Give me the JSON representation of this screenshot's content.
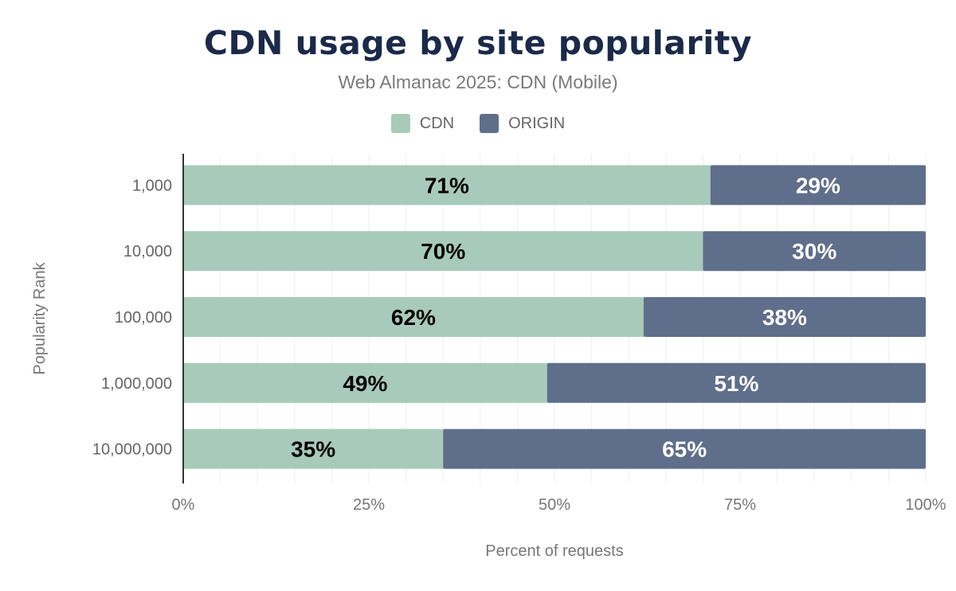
{
  "chart_data": {
    "type": "bar",
    "orientation": "horizontal",
    "stacked": true,
    "title": "CDN usage by site popularity",
    "subtitle": "Web Almanac 2025: CDN  (Mobile)",
    "xlabel": "Percent of requests",
    "ylabel": "Popularity Rank",
    "xlim": [
      0,
      100
    ],
    "x_ticks": [
      "0%",
      "25%",
      "50%",
      "75%",
      "100%"
    ],
    "grid": true,
    "legend_position": "top",
    "categories": [
      "1,000",
      "10,000",
      "100,000",
      "1,000,000",
      "10,000,000"
    ],
    "series": [
      {
        "name": "CDN",
        "color": "#a8cabb",
        "label_color": "#000000",
        "values": [
          71,
          70,
          62,
          49,
          35
        ],
        "labels": [
          "71%",
          "70%",
          "62%",
          "49%",
          "35%"
        ]
      },
      {
        "name": "ORIGIN",
        "color": "#5f6e8a",
        "label_color": "#ffffff",
        "values": [
          29,
          30,
          38,
          51,
          65
        ],
        "labels": [
          "29%",
          "30%",
          "38%",
          "51%",
          "65%"
        ]
      }
    ]
  }
}
